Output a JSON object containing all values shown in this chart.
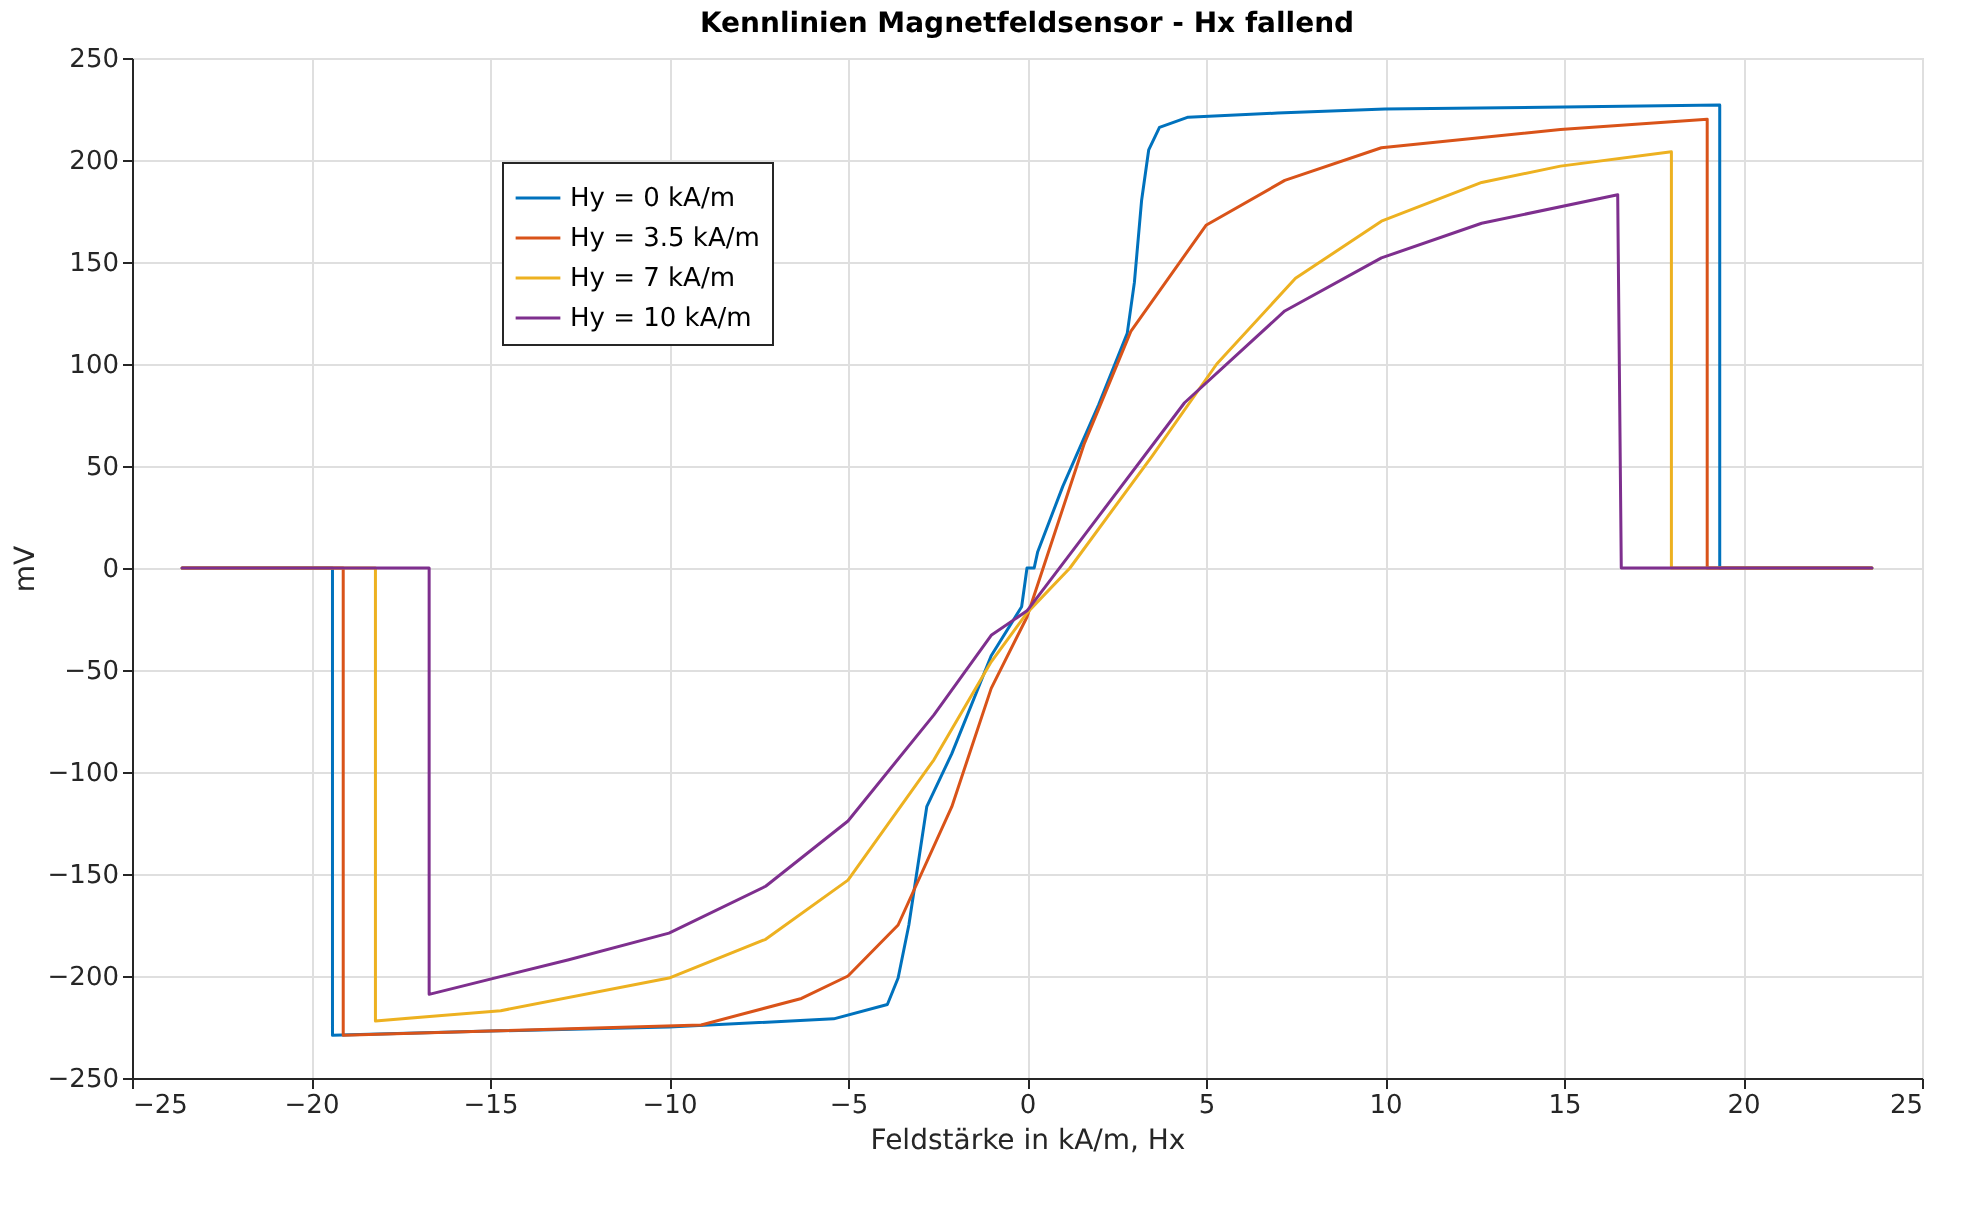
{
  "chart_data": {
    "type": "line",
    "title": "Kennlinien Magnetfeldsensor - Hx fallend",
    "xlabel": "Feldstärke in kA/m, Hx",
    "ylabel": "mV",
    "xlim": [
      -25,
      25
    ],
    "xticks": [
      -25,
      -20,
      -15,
      -10,
      -5,
      0,
      5,
      10,
      15,
      20,
      25
    ],
    "ylim": [
      -250,
      250
    ],
    "yticks": [
      -250,
      -200,
      -150,
      -100,
      -50,
      0,
      50,
      100,
      150,
      200,
      250
    ],
    "grid": true,
    "legend": "top left",
    "line_style": "solid",
    "series": [
      {
        "name": "Hy = 0 kA/m",
        "color": "#0072bd",
        "x": [
          -23.6,
          -19.4,
          -19.4,
          -15,
          -10,
          -5.4,
          -3.9,
          -3.6,
          -3.3,
          -2.8,
          -2.1,
          -1,
          -0.15,
          0,
          0.2,
          0.3,
          1,
          2,
          2.8,
          3.0,
          3.2,
          3.4,
          3.7,
          4.5,
          7,
          10,
          15,
          19.35,
          19.35,
          23.6
        ],
        "values": [
          0,
          0,
          -229,
          -227,
          -225,
          -221,
          -214,
          -201,
          -175,
          -117,
          -91,
          -43,
          -19,
          0,
          0,
          8,
          40,
          80,
          115,
          140,
          180,
          205,
          216,
          221,
          223,
          225,
          226,
          227,
          0,
          0
        ]
      },
      {
        "name": "Hy = 3.5 kA/m",
        "color": "#d95319",
        "x": [
          -23.6,
          -19.1,
          -19.1,
          -15,
          -9.1,
          -6.3,
          -5,
          -3.6,
          -2.1,
          -1,
          0,
          1.6,
          2.9,
          5,
          7.2,
          9.9,
          14.9,
          19.0,
          19.0,
          23.6
        ],
        "values": [
          0,
          0,
          -229,
          -227,
          -224,
          -211,
          -200,
          -175,
          -117,
          -59,
          -24,
          61,
          116,
          168,
          190,
          206,
          215,
          220,
          0,
          0
        ]
      },
      {
        "name": "Hy = 7 kA/m",
        "color": "#edb120",
        "x": [
          -23.6,
          -18.2,
          -18.2,
          -14.7,
          -10,
          -7.3,
          -5,
          -2.6,
          -1,
          0,
          1.2,
          3.5,
          5.3,
          7.5,
          9.9,
          12.7,
          14.9,
          18.0,
          18.0,
          23.6
        ],
        "values": [
          0,
          0,
          -222,
          -217,
          -201,
          -182,
          -153,
          -94,
          -46,
          -22,
          0,
          55,
          100,
          142,
          170,
          189,
          197,
          204,
          0,
          0
        ]
      },
      {
        "name": "Hy = 10 kA/m",
        "color": "#7e2f8e",
        "x": [
          -23.6,
          -16.7,
          -16.7,
          -12.8,
          -10,
          -7.3,
          -5,
          -2.6,
          -1,
          0,
          1.6,
          4.4,
          7.2,
          9.9,
          12.7,
          16.5,
          16.6,
          23.6
        ],
        "values": [
          0,
          0,
          -209,
          -192,
          -179,
          -156,
          -124,
          -72,
          -33,
          -21,
          16,
          81,
          126,
          152,
          169,
          183,
          0,
          0
        ]
      }
    ]
  }
}
